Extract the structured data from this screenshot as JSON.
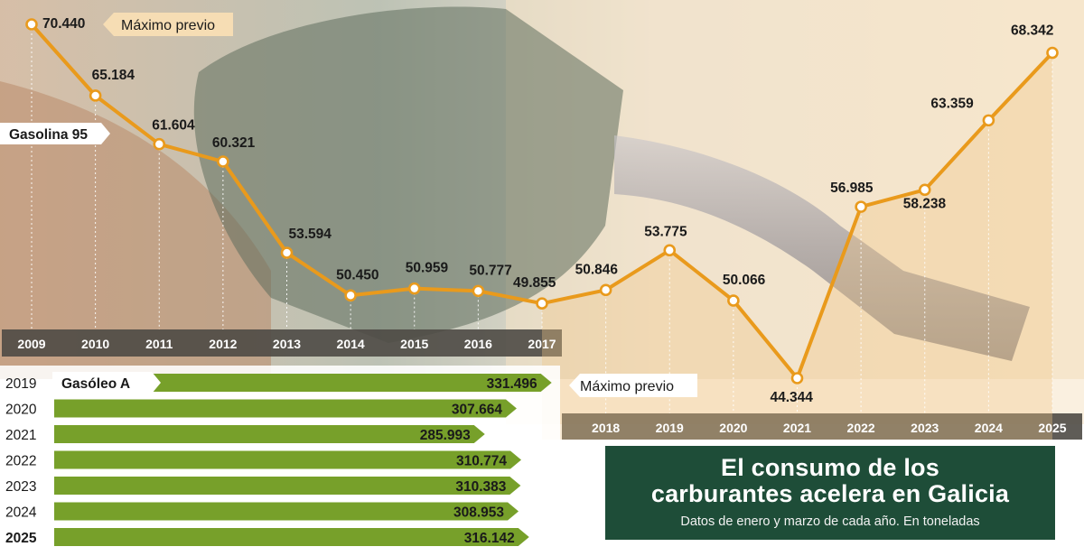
{
  "title": "El consumo de los carburantes acelera en Galicia",
  "title_lines": [
    "El consumo de los",
    "carburantes acelera en Galicia"
  ],
  "subtitle": "Datos de enero y marzo de cada año. En toneladas",
  "colors": {
    "line": "#e99a1c",
    "bar": "#77a02a",
    "axis_band": "#4e4a45",
    "title_bg": "#1e4d38",
    "tag": "#f6ddb4"
  },
  "chart_data": [
    {
      "type": "line",
      "series": [
        {
          "name": "Gasolina 95",
          "x": [
            "2009",
            "2010",
            "2011",
            "2012",
            "2013",
            "2014",
            "2015",
            "2016",
            "2017",
            "2018",
            "2019",
            "2020",
            "2021",
            "2022",
            "2023",
            "2024",
            "2025"
          ],
          "values": [
            70.44,
            65.184,
            61.604,
            60.321,
            53.594,
            50.45,
            50.959,
            50.777,
            49.855,
            50.846,
            53.775,
            50.066,
            44.344,
            56.985,
            58.238,
            63.359,
            68.342
          ]
        }
      ],
      "labels": [
        "70.440",
        "65.184",
        "61.604",
        "60.321",
        "53.594",
        "50.450",
        "50.959",
        "50.777",
        "49.855",
        "50.846",
        "53.775",
        "50.066",
        "44.344",
        "56.985",
        "58.238",
        "63.359",
        "68.342"
      ],
      "annotation": "Máximo previo"
    },
    {
      "type": "bar",
      "series": [
        {
          "name": "Gasóleo A",
          "categories": [
            "2019",
            "2020",
            "2021",
            "2022",
            "2023",
            "2024",
            "2025"
          ],
          "values": [
            331.496,
            307.664,
            285.993,
            310.774,
            310.383,
            308.953,
            316.142
          ]
        }
      ],
      "labels": [
        "331.496",
        "307.664",
        "285.993",
        "310.774",
        "310.383",
        "308.953",
        "316.142"
      ],
      "annotation": "Máximo previo"
    }
  ]
}
